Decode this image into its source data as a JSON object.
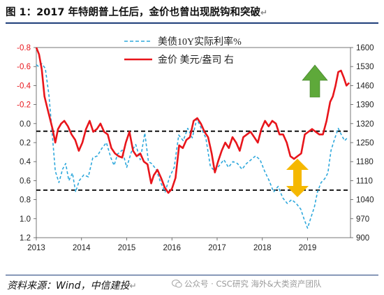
{
  "header": {
    "title": "图 1：2017 年特朗普上任后，金价也曾出现脱钩和突破",
    "edit_mark": "↵"
  },
  "footer": {
    "source": "资料来源：Wind，中信建投",
    "watermark": "公众号 · CSC研究 海外&大类资产团队"
  },
  "colors": {
    "gold_line": "#e8151b",
    "yield_line": "#2ea8dc",
    "left_tick_color": "#e8151b",
    "dashed_line": "#000000",
    "up_arrow": "#5ea93a",
    "double_arrow": "#f5b800",
    "rule": "#1f3f7a"
  },
  "chart_data": {
    "type": "line",
    "title": "",
    "x_ticks": [
      "2013",
      "2014",
      "2015",
      "2016",
      "2017",
      "2018",
      "2019"
    ],
    "x_range": [
      2013.0,
      2019.95
    ],
    "y_left": {
      "range": [
        -0.8,
        1.2
      ],
      "inverted": true,
      "ticks": [
        "-0.8",
        "-0.6",
        "-0.4",
        "-0.2",
        "0.0",
        "0.2",
        "0.4",
        "0.6",
        "0.8",
        "1.0",
        "1.2"
      ],
      "tick_values": [
        -0.8,
        -0.6,
        -0.4,
        -0.2,
        0.0,
        0.2,
        0.4,
        0.6,
        0.8,
        1.0,
        1.2
      ]
    },
    "y_right": {
      "range": [
        900,
        1600
      ],
      "ticks": [
        "1600",
        "1530",
        "1460",
        "1390",
        "1320",
        "1250",
        "1180",
        "1110",
        "1040",
        "970",
        "900"
      ],
      "tick_values": [
        1600,
        1530,
        1460,
        1390,
        1320,
        1250,
        1180,
        1110,
        1040,
        970,
        900
      ]
    },
    "grid": false,
    "legend_position": "top-center",
    "series": [
      {
        "name": "美债10Y实际利率%",
        "axis": "left",
        "style": "dashed",
        "x": [
          2013.0,
          2013.05,
          2013.12,
          2013.2,
          2013.28,
          2013.35,
          2013.42,
          2013.5,
          2013.58,
          2013.65,
          2013.72,
          2013.8,
          2013.87,
          2013.95,
          2014.05,
          2014.15,
          2014.25,
          2014.35,
          2014.45,
          2014.55,
          2014.65,
          2014.72,
          2014.8,
          2014.9,
          2015.0,
          2015.1,
          2015.2,
          2015.3,
          2015.4,
          2015.48,
          2015.55,
          2015.65,
          2015.75,
          2015.85,
          2015.95,
          2016.05,
          2016.15,
          2016.25,
          2016.35,
          2016.45,
          2016.55,
          2016.65,
          2016.75,
          2016.85,
          2016.95,
          2017.05,
          2017.15,
          2017.25,
          2017.35,
          2017.45,
          2017.55,
          2017.65,
          2017.75,
          2017.85,
          2017.95,
          2018.05,
          2018.15,
          2018.25,
          2018.35,
          2018.45,
          2018.55,
          2018.65,
          2018.75,
          2018.85,
          2018.92,
          2019.0,
          2019.08,
          2019.15,
          2019.22,
          2019.3,
          2019.38,
          2019.45,
          2019.52,
          2019.6,
          2019.68,
          2019.75,
          2019.82,
          2019.9
        ],
        "y": [
          -0.62,
          -0.6,
          -0.63,
          -0.58,
          -0.3,
          0.1,
          0.5,
          0.62,
          0.48,
          0.42,
          0.6,
          0.52,
          0.72,
          0.6,
          0.54,
          0.56,
          0.36,
          0.34,
          0.26,
          0.2,
          0.36,
          0.44,
          0.32,
          0.28,
          0.46,
          0.3,
          0.22,
          0.38,
          0.1,
          0.4,
          0.42,
          0.48,
          0.62,
          0.72,
          0.56,
          0.46,
          0.12,
          0.18,
          0.05,
          0.15,
          -0.05,
          0.05,
          0.15,
          0.45,
          0.5,
          0.44,
          0.38,
          0.46,
          0.4,
          0.42,
          0.48,
          0.42,
          0.38,
          0.34,
          0.38,
          0.5,
          0.6,
          0.72,
          0.66,
          0.78,
          0.84,
          0.8,
          0.84,
          0.9,
          1.0,
          1.1,
          0.98,
          0.88,
          0.72,
          0.62,
          0.58,
          0.52,
          0.28,
          0.16,
          0.05,
          0.12,
          0.18,
          0.14
        ]
      },
      {
        "name": "金价 美元/盎司 右",
        "axis": "right",
        "style": "solid",
        "x": [
          2013.0,
          2013.06,
          2013.12,
          2013.18,
          2013.24,
          2013.3,
          2013.36,
          2013.42,
          2013.48,
          2013.55,
          2013.62,
          2013.7,
          2013.78,
          2013.86,
          2013.94,
          2014.02,
          2014.1,
          2014.18,
          2014.26,
          2014.34,
          2014.42,
          2014.5,
          2014.58,
          2014.66,
          2014.74,
          2014.82,
          2014.9,
          2014.98,
          2015.06,
          2015.14,
          2015.22,
          2015.3,
          2015.38,
          2015.46,
          2015.54,
          2015.6,
          2015.68,
          2015.76,
          2015.84,
          2015.92,
          2016.0,
          2016.08,
          2016.16,
          2016.24,
          2016.32,
          2016.4,
          2016.48,
          2016.56,
          2016.64,
          2016.72,
          2016.8,
          2016.88,
          2016.95,
          2017.02,
          2017.1,
          2017.18,
          2017.26,
          2017.34,
          2017.42,
          2017.5,
          2017.58,
          2017.66,
          2017.74,
          2017.82,
          2017.9,
          2017.98,
          2018.06,
          2018.14,
          2018.22,
          2018.3,
          2018.38,
          2018.46,
          2018.54,
          2018.62,
          2018.7,
          2018.78,
          2018.86,
          2018.94,
          2019.02,
          2019.1,
          2019.18,
          2019.26,
          2019.34,
          2019.42,
          2019.5,
          2019.56,
          2019.62,
          2019.68,
          2019.74,
          2019.8,
          2019.86,
          2019.92
        ],
        "y": [
          1600,
          1575,
          1520,
          1420,
          1380,
          1340,
          1300,
          1250,
          1300,
          1320,
          1330,
          1310,
          1280,
          1260,
          1220,
          1250,
          1300,
          1330,
          1290,
          1300,
          1320,
          1290,
          1280,
          1230,
          1210,
          1200,
          1195,
          1250,
          1290,
          1220,
          1200,
          1210,
          1180,
          1170,
          1100,
          1130,
          1150,
          1120,
          1085,
          1065,
          1080,
          1120,
          1240,
          1230,
          1260,
          1270,
          1330,
          1340,
          1320,
          1290,
          1270,
          1210,
          1140,
          1180,
          1220,
          1250,
          1230,
          1270,
          1250,
          1220,
          1270,
          1280,
          1290,
          1270,
          1250,
          1300,
          1330,
          1310,
          1330,
          1320,
          1280,
          1280,
          1250,
          1200,
          1190,
          1200,
          1210,
          1280,
          1290,
          1300,
          1290,
          1280,
          1280,
          1330,
          1400,
          1420,
          1460,
          1510,
          1515,
          1490,
          1460,
          1470
        ]
      }
    ],
    "reference_lines": [
      0.08,
      0.7
    ]
  }
}
